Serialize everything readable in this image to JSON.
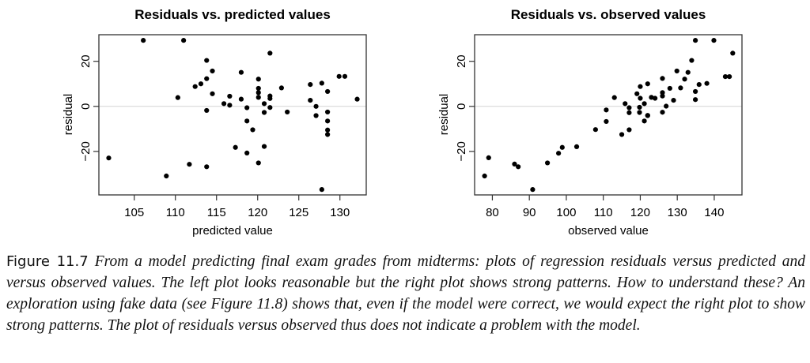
{
  "chart_data": [
    {
      "type": "scatter",
      "title": "Residuals vs. predicted values",
      "xlabel": "predicted value",
      "ylabel": "residual",
      "xlim": [
        100.7,
        133.2
      ],
      "ylim": [
        -39.3,
        31.8
      ],
      "xticks": [
        105,
        110,
        115,
        120,
        125,
        130
      ],
      "yticks": [
        -20,
        0,
        20
      ],
      "reference_line_y": 0,
      "grid": false,
      "legend": "none",
      "points": [
        [
          101.9,
          -22.9
        ],
        [
          106.1,
          29.3
        ],
        [
          108.9,
          -30.9
        ],
        [
          110.3,
          3.9
        ],
        [
          111.0,
          29.3
        ],
        [
          111.7,
          -25.7
        ],
        [
          112.4,
          8.8
        ],
        [
          113.1,
          10.0
        ],
        [
          113.8,
          20.4
        ],
        [
          113.8,
          12.3
        ],
        [
          113.8,
          -1.8
        ],
        [
          113.8,
          -26.8
        ],
        [
          114.5,
          15.7
        ],
        [
          114.5,
          5.6
        ],
        [
          115.9,
          1.2
        ],
        [
          116.6,
          4.5
        ],
        [
          116.6,
          0.5
        ],
        [
          117.3,
          -18.2
        ],
        [
          118.0,
          15.1
        ],
        [
          118.0,
          3.2
        ],
        [
          118.7,
          -0.6
        ],
        [
          118.7,
          -6.5
        ],
        [
          118.7,
          -20.7
        ],
        [
          119.4,
          -10.4
        ],
        [
          120.1,
          12.1
        ],
        [
          120.1,
          8.0
        ],
        [
          120.1,
          6.1
        ],
        [
          120.1,
          4.0
        ],
        [
          120.1,
          -25.1
        ],
        [
          120.8,
          1.2
        ],
        [
          120.8,
          -2.7
        ],
        [
          120.8,
          -17.8
        ],
        [
          121.5,
          23.6
        ],
        [
          121.5,
          4.6
        ],
        [
          121.5,
          3.5
        ],
        [
          121.5,
          -0.5
        ],
        [
          122.9,
          8.2
        ],
        [
          123.6,
          -2.5
        ],
        [
          126.4,
          9.7
        ],
        [
          126.4,
          2.7
        ],
        [
          127.1,
          0.0
        ],
        [
          127.1,
          -4.1
        ],
        [
          127.8,
          10.3
        ],
        [
          127.8,
          -36.9
        ],
        [
          128.5,
          6.6
        ],
        [
          128.5,
          -2.5
        ],
        [
          128.5,
          -6.5
        ],
        [
          128.5,
          -10.5
        ],
        [
          128.5,
          -12.5
        ],
        [
          129.9,
          13.3
        ],
        [
          130.6,
          13.3
        ],
        [
          132.1,
          3.2
        ]
      ]
    },
    {
      "type": "scatter",
      "title": "Residuals vs. observed values",
      "xlabel": "observed value",
      "ylabel": "residual",
      "xlim": [
        75.2,
        147.5
      ],
      "ylim": [
        -39.3,
        31.8
      ],
      "xticks": [
        80,
        90,
        100,
        110,
        120,
        130,
        140
      ],
      "yticks": [
        -20,
        0,
        20
      ],
      "reference_line_y": 0,
      "grid": false,
      "legend": "none",
      "points": [
        [
          77.9,
          -30.9
        ],
        [
          79.0,
          -22.8
        ],
        [
          86.0,
          -25.6
        ],
        [
          87.0,
          -26.8
        ],
        [
          90.9,
          -36.9
        ],
        [
          94.9,
          -25.1
        ],
        [
          97.9,
          -20.8
        ],
        [
          98.9,
          -18.2
        ],
        [
          102.8,
          -17.9
        ],
        [
          107.9,
          -10.3
        ],
        [
          110.8,
          -1.6
        ],
        [
          110.8,
          -6.7
        ],
        [
          113.0,
          3.9
        ],
        [
          115.0,
          -12.5
        ],
        [
          117.0,
          -10.4
        ],
        [
          115.9,
          1.2
        ],
        [
          117.0,
          -0.6
        ],
        [
          117.0,
          -2.8
        ],
        [
          119.1,
          5.6
        ],
        [
          120.0,
          8.8
        ],
        [
          120.0,
          3.6
        ],
        [
          122.0,
          10.0
        ],
        [
          119.8,
          -0.4
        ],
        [
          119.8,
          -2.7
        ],
        [
          121.1,
          1.2
        ],
        [
          122.0,
          -4.0
        ],
        [
          121.1,
          -6.5
        ],
        [
          134.9,
          29.3
        ],
        [
          139.9,
          29.3
        ],
        [
          145.0,
          23.6
        ],
        [
          133.9,
          20.4
        ],
        [
          129.9,
          15.7
        ],
        [
          132.9,
          15.1
        ],
        [
          126.0,
          12.4
        ],
        [
          132.0,
          12.1
        ],
        [
          143.0,
          13.2
        ],
        [
          144.1,
          13.2
        ],
        [
          135.9,
          9.7
        ],
        [
          138.0,
          10.2
        ],
        [
          128.0,
          8.0
        ],
        [
          130.9,
          8.2
        ],
        [
          126.0,
          6.1
        ],
        [
          134.9,
          6.6
        ],
        [
          123.0,
          4.0
        ],
        [
          124.0,
          3.6
        ],
        [
          126.0,
          4.6
        ],
        [
          129.0,
          2.7
        ],
        [
          134.9,
          3.0
        ],
        [
          127.0,
          0.1
        ],
        [
          126.0,
          -2.6
        ],
        [
          122.0,
          -4.1
        ]
      ]
    }
  ],
  "colors": {
    "points": "#000000",
    "axes": "#333333",
    "zero_line": "#d3d3d3"
  },
  "caption": {
    "label": "Figure 11.7",
    "text": "From a model predicting final exam grades from midterms: plots of regression residuals versus predicted and versus observed values. The left plot looks reasonable but the right plot shows strong patterns. How to understand these? An exploration using fake data (see Figure 11.8) shows that, even if the model were correct, we would expect the right plot to show strong patterns. The plot of residuals versus observed thus does not indicate a problem with the model."
  }
}
